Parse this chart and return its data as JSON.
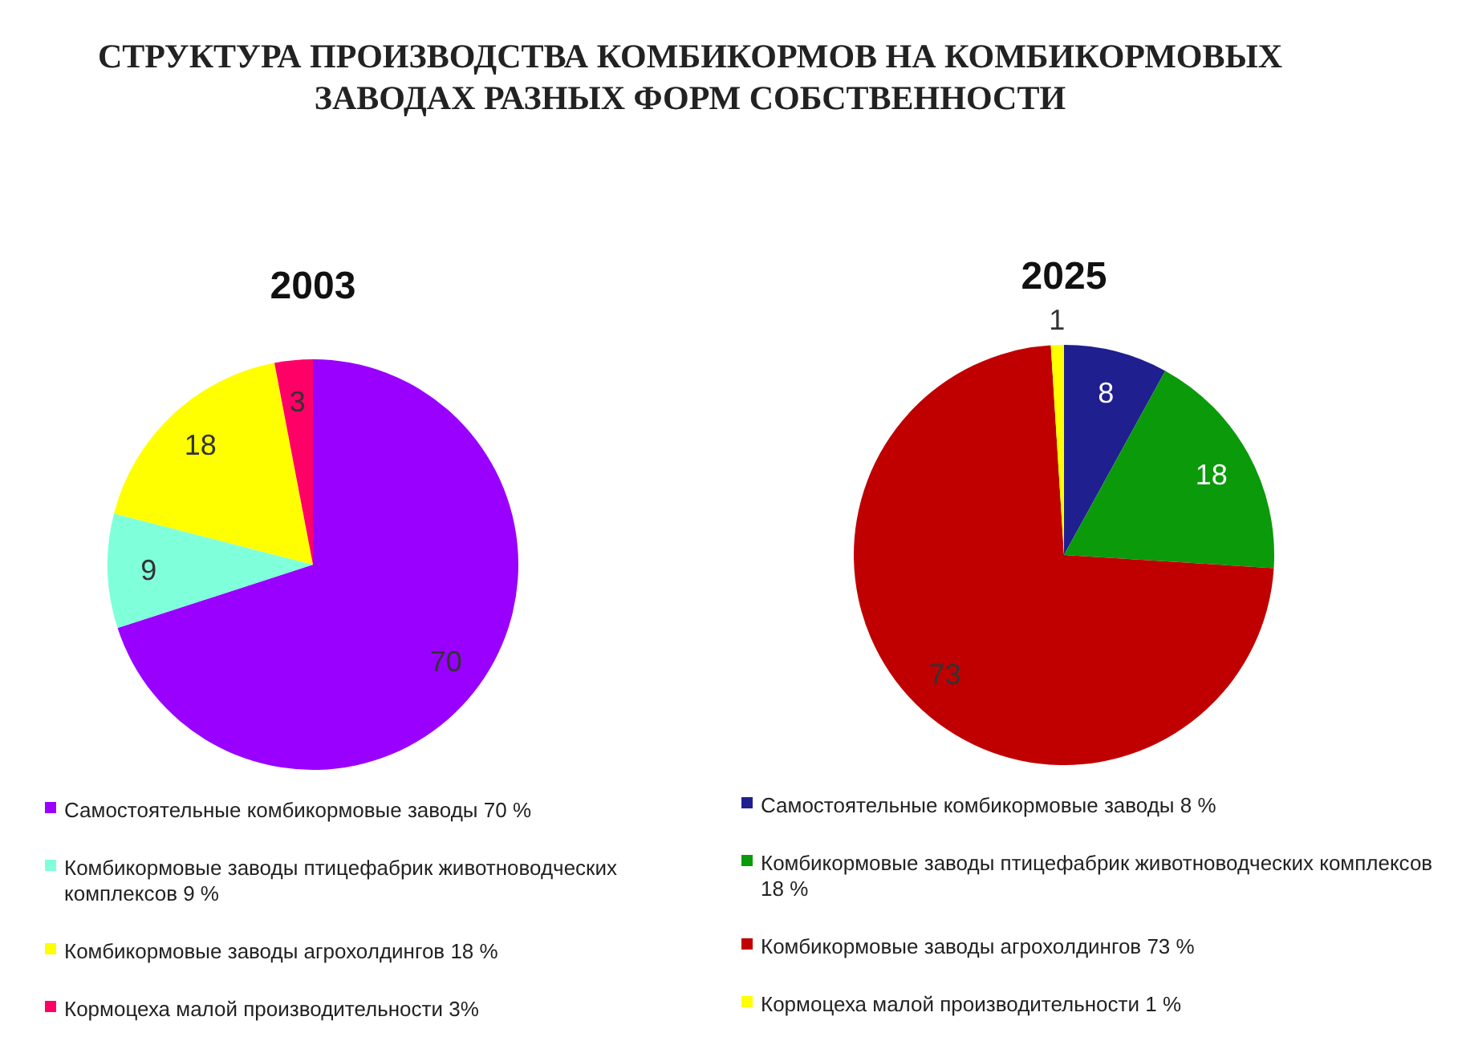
{
  "chart_data": [
    {
      "type": "other",
      "title": "СТРУКТУРА ПРОИЗВОДСТВА КОМБИКОРМОВ НА КОМБИКОРМОВЫХ ЗАВОДАХ РАЗНЫХ ФОРМ СОБСТВЕННОСТИ"
    },
    {
      "type": "pie",
      "title": "2003",
      "categories": [
        "Самостоятельные комбикормовые заводы 70  %",
        "Комбикормовые заводы птицефабрик животноводческих комплексов 9 %",
        "Комбикормовые заводы агрохолдингов 18 %",
        "Кормоцеха малой производительности 3%"
      ],
      "values": [
        70,
        9,
        18,
        3
      ],
      "colors": [
        "#9900ff",
        "#80ffdb",
        "#ffff00",
        "#ff0066"
      ],
      "data_labels": true,
      "legend": "bottom"
    },
    {
      "type": "pie",
      "title": "2025",
      "categories": [
        "Самостоятельные комбикормовые заводы 8 %",
        "Комбикормовые заводы птицефабрик животноводческих комплексов 18 %",
        "Комбикормовые заводы агрохолдингов 73 %",
        "Кормоцеха малой производительности 1 %"
      ],
      "values": [
        8,
        18,
        73,
        1
      ],
      "colors": [
        "#1f1f8f",
        "#0a9a0a",
        "#c00000",
        "#ffff00"
      ],
      "data_labels": true,
      "legend": "bottom"
    }
  ]
}
